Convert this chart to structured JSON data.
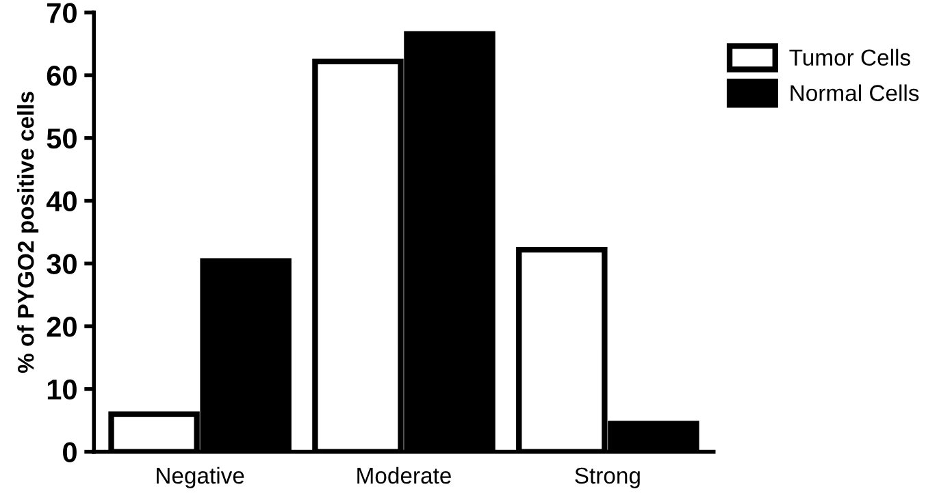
{
  "chart_data": {
    "type": "bar",
    "ylabel": "% of PYGO2 positive cells",
    "categories": [
      "Negative",
      "Moderate",
      "Strong"
    ],
    "series": [
      {
        "name": "Tumor Cells",
        "color": "#ffffff",
        "values": [
          6.0,
          62.2,
          32.2
        ]
      },
      {
        "name": "Normal Cells",
        "color": "#000000",
        "values": [
          30.4,
          66.6,
          4.5
        ]
      }
    ],
    "ylim": [
      0,
      70
    ],
    "yticks": [
      0,
      10,
      20,
      30,
      40,
      50,
      60,
      70
    ],
    "grid": false,
    "legend": "top right"
  }
}
